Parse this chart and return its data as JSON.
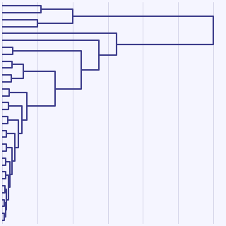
{
  "line_color": "#3d3d8c",
  "line_width": 0.9,
  "bg_color": "#f5f5ff",
  "orientation": "right",
  "figsize": [
    3.2,
    3.2
  ],
  "dpi": 100,
  "grid_color": "#c8c8e0",
  "grid_alpha": 1.0,
  "n_leaves": 32
}
